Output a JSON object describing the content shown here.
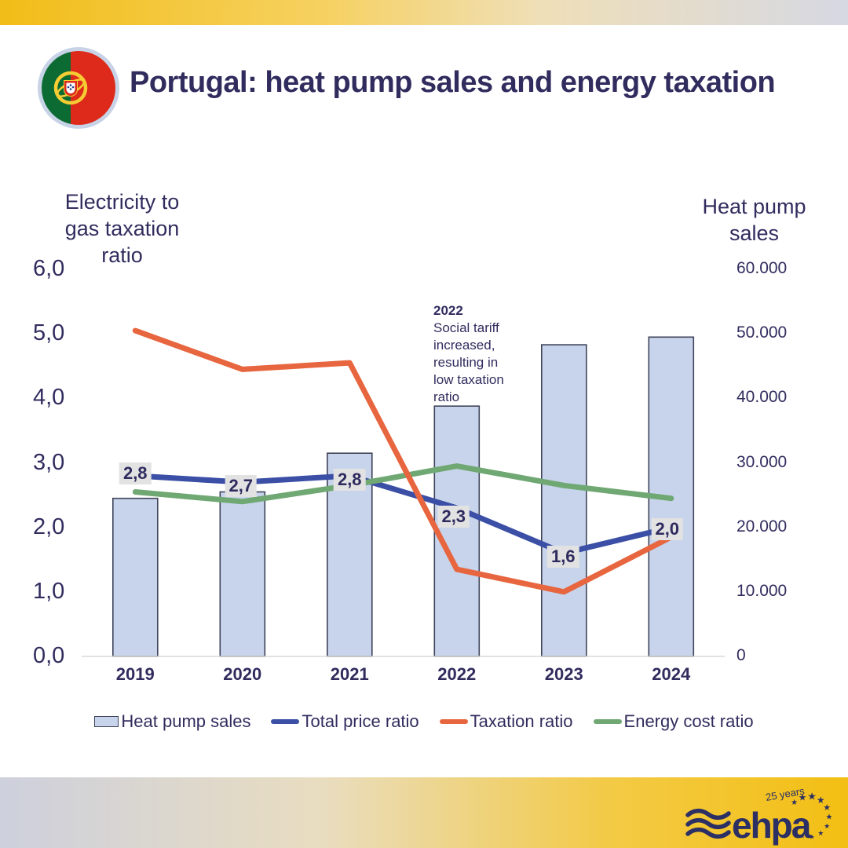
{
  "header": {
    "title": "Portugal: heat pump sales and energy taxation"
  },
  "left_axis": {
    "title": "Electricity to\ngas taxation\nratio",
    "ticks": [
      "6,0",
      "5,0",
      "4,0",
      "3,0",
      "2,0",
      "1,0",
      "0,0"
    ]
  },
  "right_axis": {
    "title": "Heat pump\nsales",
    "ticks": [
      "60.000",
      "50.000",
      "40.000",
      "30.000",
      "20.000",
      "10.000",
      "0"
    ]
  },
  "chart_data": {
    "type": "bar+line combo",
    "title": "Portugal: heat pump sales and energy taxation",
    "categories": [
      "2019",
      "2020",
      "2021",
      "2022",
      "2023",
      "2024"
    ],
    "bar_series": {
      "name": "Heat pump sales",
      "axis": "right",
      "color": "#c7d4eb",
      "border_color": "#3f4459",
      "values": [
        24500,
        25500,
        31500,
        38800,
        48300,
        49500
      ]
    },
    "line_series": [
      {
        "name": "Total price ratio",
        "axis": "left",
        "color": "#3a4fa5",
        "values": [
          2.8,
          2.7,
          2.8,
          2.3,
          1.6,
          2.0
        ],
        "point_labels": [
          "2,8",
          "2,7",
          "2,8",
          "2,3",
          "1,6",
          "2,0"
        ]
      },
      {
        "name": "Energy cost ratio",
        "axis": "left",
        "color": "#70a873",
        "values": [
          2.55,
          2.4,
          2.65,
          2.95,
          2.65,
          2.45
        ],
        "point_labels": []
      },
      {
        "name": "Taxation ratio",
        "axis": "left",
        "color": "#e8663f",
        "values": [
          5.05,
          4.45,
          4.55,
          1.35,
          1.0,
          1.85
        ],
        "point_labels": []
      }
    ],
    "left_axis_range": [
      0,
      6
    ],
    "right_axis_range": [
      0,
      60000
    ],
    "grid": false,
    "legend_position": "bottom",
    "annotation": {
      "heading": "2022",
      "body": "Social tariff increased, resulting in low taxation ratio"
    }
  },
  "legend": {
    "items": [
      {
        "label": "Heat pump sales",
        "swatch": "box",
        "color": "#c7d4eb"
      },
      {
        "label": "Total price ratio",
        "swatch": "line",
        "color": "#3a4fa5"
      },
      {
        "label": "Taxation ratio",
        "swatch": "line",
        "color": "#e8663f"
      },
      {
        "label": "Energy cost ratio",
        "swatch": "line",
        "color": "#70a873"
      }
    ]
  },
  "footer": {
    "logo_text": "ehpa",
    "badge": "25 years",
    "star_glyph": "★"
  },
  "colors": {
    "text_navy": "#312c5e",
    "label_bg": "#e2e2e2",
    "axis_line": "#d8d8d8",
    "band_gold": "#f3bf14",
    "band_gray": "#cdd0dd",
    "logo_navy": "#2b2f63"
  }
}
